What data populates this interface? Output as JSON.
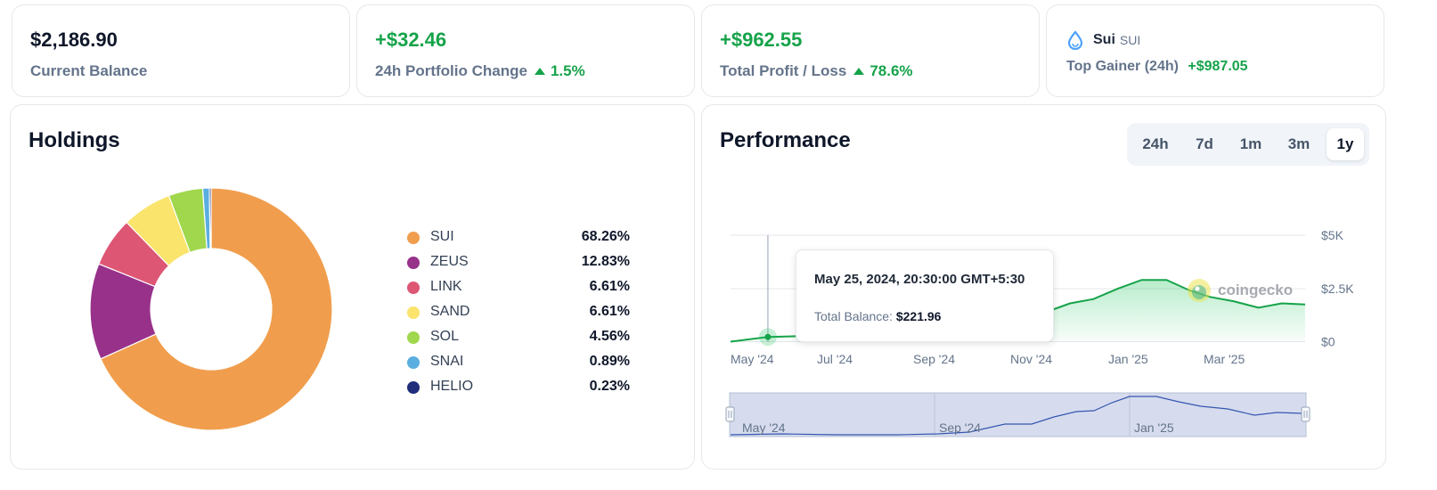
{
  "stats": {
    "balance": {
      "value": "$2,186.90",
      "label": "Current Balance"
    },
    "change24h": {
      "value": "+$32.46",
      "label": "24h Portfolio Change",
      "pct": "1.5%"
    },
    "pnl": {
      "value": "+$962.55",
      "label": "Total Profit / Loss",
      "pct": "78.6%"
    },
    "gainer": {
      "name": "Sui",
      "symbol": "SUI",
      "label": "Top Gainer (24h)",
      "value": "+$987.05",
      "icon": "sui-drop-icon"
    }
  },
  "holdings": {
    "title": "Holdings",
    "items": [
      {
        "name": "SUI",
        "pct": "68.26%",
        "value": 68.26,
        "color": "#f09e4d"
      },
      {
        "name": "ZEUS",
        "pct": "12.83%",
        "value": 12.83,
        "color": "#98318a"
      },
      {
        "name": "LINK",
        "pct": "6.61%",
        "value": 6.61,
        "color": "#dd5674"
      },
      {
        "name": "SAND",
        "pct": "6.61%",
        "value": 6.61,
        "color": "#fbe46c"
      },
      {
        "name": "SOL",
        "pct": "4.56%",
        "value": 4.56,
        "color": "#a0d74d"
      },
      {
        "name": "SNAI",
        "pct": "0.89%",
        "value": 0.89,
        "color": "#5aaee0"
      },
      {
        "name": "HELIO",
        "pct": "0.23%",
        "value": 0.23,
        "color": "#1f2d7a"
      }
    ]
  },
  "performance": {
    "title": "Performance",
    "timeframes": [
      "24h",
      "7d",
      "1m",
      "3m",
      "1y"
    ],
    "active_timeframe": "1y",
    "tooltip": {
      "date": "May 25, 2024, 20:30:00 GMT+5:30",
      "label": "Total Balance:",
      "value": "$221.96"
    },
    "watermark": "coingecko",
    "navigator_labels": [
      "May '24",
      "Sep '24",
      "Jan '25"
    ]
  },
  "chart_data": {
    "type": "area",
    "x_tick_labels": [
      "May '24",
      "Jul '24",
      "Sep '24",
      "Nov '24",
      "Jan '25",
      "Mar '25"
    ],
    "y_tick_labels": [
      "$0",
      "$2.5K",
      "$5K"
    ],
    "ylim": [
      0,
      5000
    ],
    "y_axis_position": "right",
    "grid": true,
    "line_color": "#16a34a",
    "series": [
      {
        "values": [
          [
            "2024-05-01",
            0
          ],
          [
            "2024-05-25",
            222
          ],
          [
            "2024-06-15",
            260
          ],
          [
            "2024-07-01",
            290
          ],
          [
            "2024-08-01",
            300
          ],
          [
            "2024-09-01",
            330
          ],
          [
            "2024-09-20",
            380
          ],
          [
            "2024-10-05",
            450
          ],
          [
            "2024-10-20",
            600
          ],
          [
            "2024-11-05",
            1000
          ],
          [
            "2024-11-20",
            1400
          ],
          [
            "2024-12-05",
            1800
          ],
          [
            "2024-12-20",
            2000
          ],
          [
            "2025-01-05",
            2500
          ],
          [
            "2025-01-20",
            2900
          ],
          [
            "2025-02-05",
            2900
          ],
          [
            "2025-02-20",
            2400
          ],
          [
            "2025-03-05",
            2100
          ],
          [
            "2025-03-20",
            1900
          ],
          [
            "2025-04-05",
            1600
          ],
          [
            "2025-04-20",
            1800
          ],
          [
            "2025-05-05",
            1750
          ]
        ]
      }
    ]
  }
}
